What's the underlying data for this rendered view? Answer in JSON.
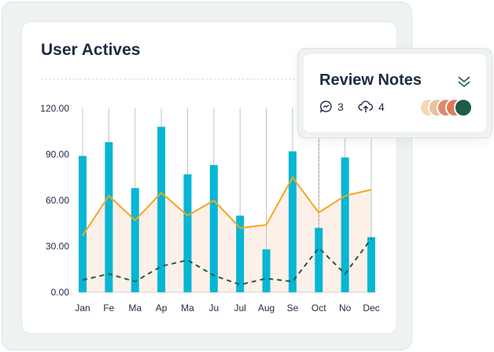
{
  "chart_card": {
    "title": "User Actives"
  },
  "review_notes": {
    "title": "Review Notes",
    "comments_count": "3",
    "uploads_count": "4",
    "icons": [
      "chat-icon",
      "cloud-upload-icon",
      "chevron-double-down-icon"
    ],
    "avatar_colors": [
      "#f4d9b8",
      "#e8c29e",
      "#d98b6e",
      "#e07a5f",
      "#1f5c45"
    ]
  },
  "chart_data": {
    "type": "bar",
    "categories": [
      "Jan",
      "Fe",
      "Ma",
      "Ap",
      "Ma",
      "Ju",
      "Jul",
      "Aug",
      "Se",
      "Oct",
      "No",
      "Dec"
    ],
    "ylim": [
      0,
      120
    ],
    "yticks": [
      "0.00",
      "30.00",
      "60.00",
      "90.00",
      "120.00"
    ],
    "series": [
      {
        "type": "bar",
        "color": "#06b6d4",
        "values": [
          89,
          98,
          68,
          108,
          77,
          83,
          50,
          28,
          92,
          42,
          88,
          36
        ]
      },
      {
        "type": "area",
        "color": "#f5a623",
        "fill": "#fdf0e8",
        "values": [
          37,
          63,
          47,
          65,
          50,
          60,
          42,
          44,
          75,
          52,
          63,
          67
        ]
      },
      {
        "type": "line-dashed",
        "color": "#1f5c45",
        "values": [
          8,
          12,
          7,
          17,
          21,
          11,
          5,
          9,
          7,
          29,
          12,
          35
        ]
      }
    ],
    "highlight_category": "Oct",
    "grid": "vertical"
  }
}
